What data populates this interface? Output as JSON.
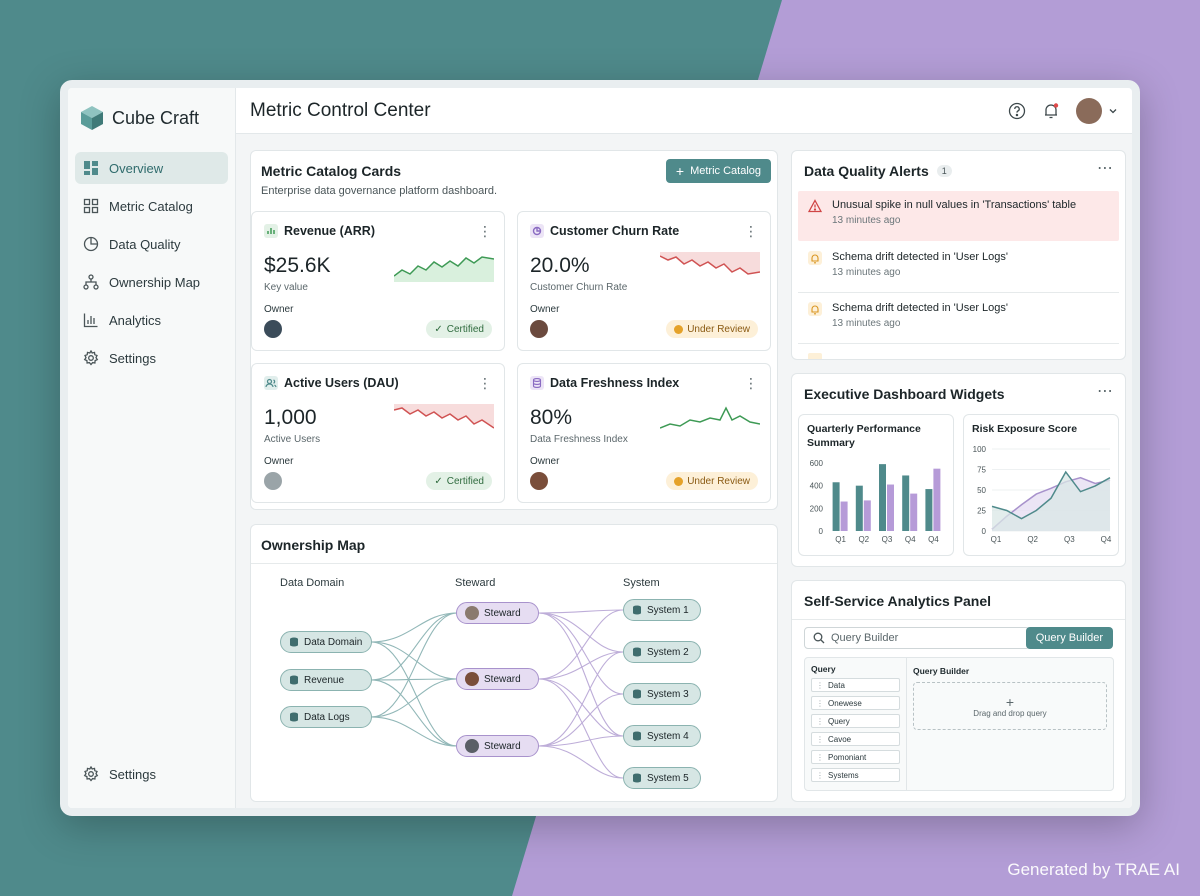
{
  "app": {
    "brand": "Cube Craft",
    "page_title": "Metric Control Center"
  },
  "colors": {
    "accent": "#4f8a8b",
    "steward": "#b39dd6",
    "bar1": "#4f8a8b",
    "bar2": "#b69bd8",
    "error_bg": "#fde8e8"
  },
  "sidebar": {
    "items": [
      {
        "label": "Overview",
        "icon": "overview-icon"
      },
      {
        "label": "Metric Catalog",
        "icon": "grid-icon"
      },
      {
        "label": "Data Quality",
        "icon": "pie-icon"
      },
      {
        "label": "Ownership Map",
        "icon": "hierarchy-icon"
      },
      {
        "label": "Analytics",
        "icon": "bar-chart-icon"
      },
      {
        "label": "Settings",
        "icon": "gear-icon"
      }
    ],
    "bottom": {
      "label": "Settings",
      "icon": "gear-icon"
    }
  },
  "catalog": {
    "title": "Metric Catalog Cards",
    "subtitle": "Enterprise data governance platform dashboard.",
    "button": "Metric Catalog",
    "cards": [
      {
        "title": "Revenue (ARR)",
        "value": "$25.6K",
        "sub": "Key value",
        "owner": "Owner",
        "status": "Certified",
        "trend": "up"
      },
      {
        "title": "Customer Churn Rate",
        "value": "20.0%",
        "sub": "Customer Churn Rate",
        "owner": "Owner",
        "status": "Under Review",
        "trend": "down"
      },
      {
        "title": "Active Users (DAU)",
        "value": "1,000",
        "sub": "Active Users",
        "owner": "Owner",
        "status": "Certified",
        "trend": "down"
      },
      {
        "title": "Data Freshness Index",
        "value": "80%",
        "sub": "Data Freshness Index",
        "owner": "Owner",
        "status": "Under Review",
        "trend": "up"
      }
    ]
  },
  "alerts": {
    "title": "Data Quality Alerts",
    "count": "1",
    "items": [
      {
        "text": "Unusual spike in null values in 'Transactions' table",
        "time": "13 minutes ago",
        "level": "error"
      },
      {
        "text": "Schema drift detected in 'User Logs'",
        "time": "13 minutes ago",
        "level": "warning"
      },
      {
        "text": "Schema drift detected in 'User Logs'",
        "time": "13 minutes ago",
        "level": "warning"
      }
    ]
  },
  "exec": {
    "title": "Executive Dashboard Widgets",
    "quarterly": {
      "title": "Quarterly Performance Summary"
    },
    "risk": {
      "title": "Risk Exposure Score"
    }
  },
  "chart_data": [
    {
      "type": "bar",
      "title": "Quarterly Performance Summary",
      "categories": [
        "Q1",
        "Q2",
        "Q3",
        "Q4",
        "Q4"
      ],
      "series": [
        {
          "values": [
            430,
            400,
            590,
            490,
            370
          ]
        },
        {
          "values": [
            260,
            270,
            410,
            330,
            550
          ]
        }
      ],
      "ylim": [
        0,
        600
      ],
      "yticks": [
        0,
        200,
        400,
        600
      ]
    },
    {
      "type": "area",
      "title": "Risk Exposure Score",
      "categories": [
        "Q1",
        "Q2",
        "Q3",
        "Q4"
      ],
      "x": [
        0,
        0.5,
        1,
        1.5,
        2,
        2.5,
        3,
        3.5,
        4
      ],
      "series": [
        {
          "values": [
            2,
            18,
            32,
            45,
            52,
            60,
            65,
            58,
            62
          ]
        },
        {
          "values": [
            30,
            25,
            15,
            25,
            40,
            72,
            48,
            55,
            65
          ]
        }
      ],
      "ylim": [
        0,
        100
      ],
      "yticks": [
        0,
        25,
        50,
        75,
        100
      ]
    }
  ],
  "ownership": {
    "title": "Ownership Map",
    "columns": [
      "Data Domain",
      "Steward",
      "System"
    ],
    "domains": [
      "Data Domain",
      "Revenue",
      "Data Logs"
    ],
    "stewards": [
      "Steward",
      "Steward",
      "Steward"
    ],
    "systems": [
      "System 1",
      "System 2",
      "System 3",
      "System 4",
      "System 5"
    ]
  },
  "analytics": {
    "title": "Self-Service Analytics Panel",
    "search_placeholder": "Query Builder",
    "button": "Query Builder",
    "query_header": "Query",
    "builder_header": "Query Builder",
    "query_items": [
      "Data",
      "Onewese",
      "Query",
      "Cavoe",
      "Pomoniant",
      "Systems"
    ],
    "drop_text": "Drag and drop query"
  },
  "watermark": "Generated by TRAE AI"
}
